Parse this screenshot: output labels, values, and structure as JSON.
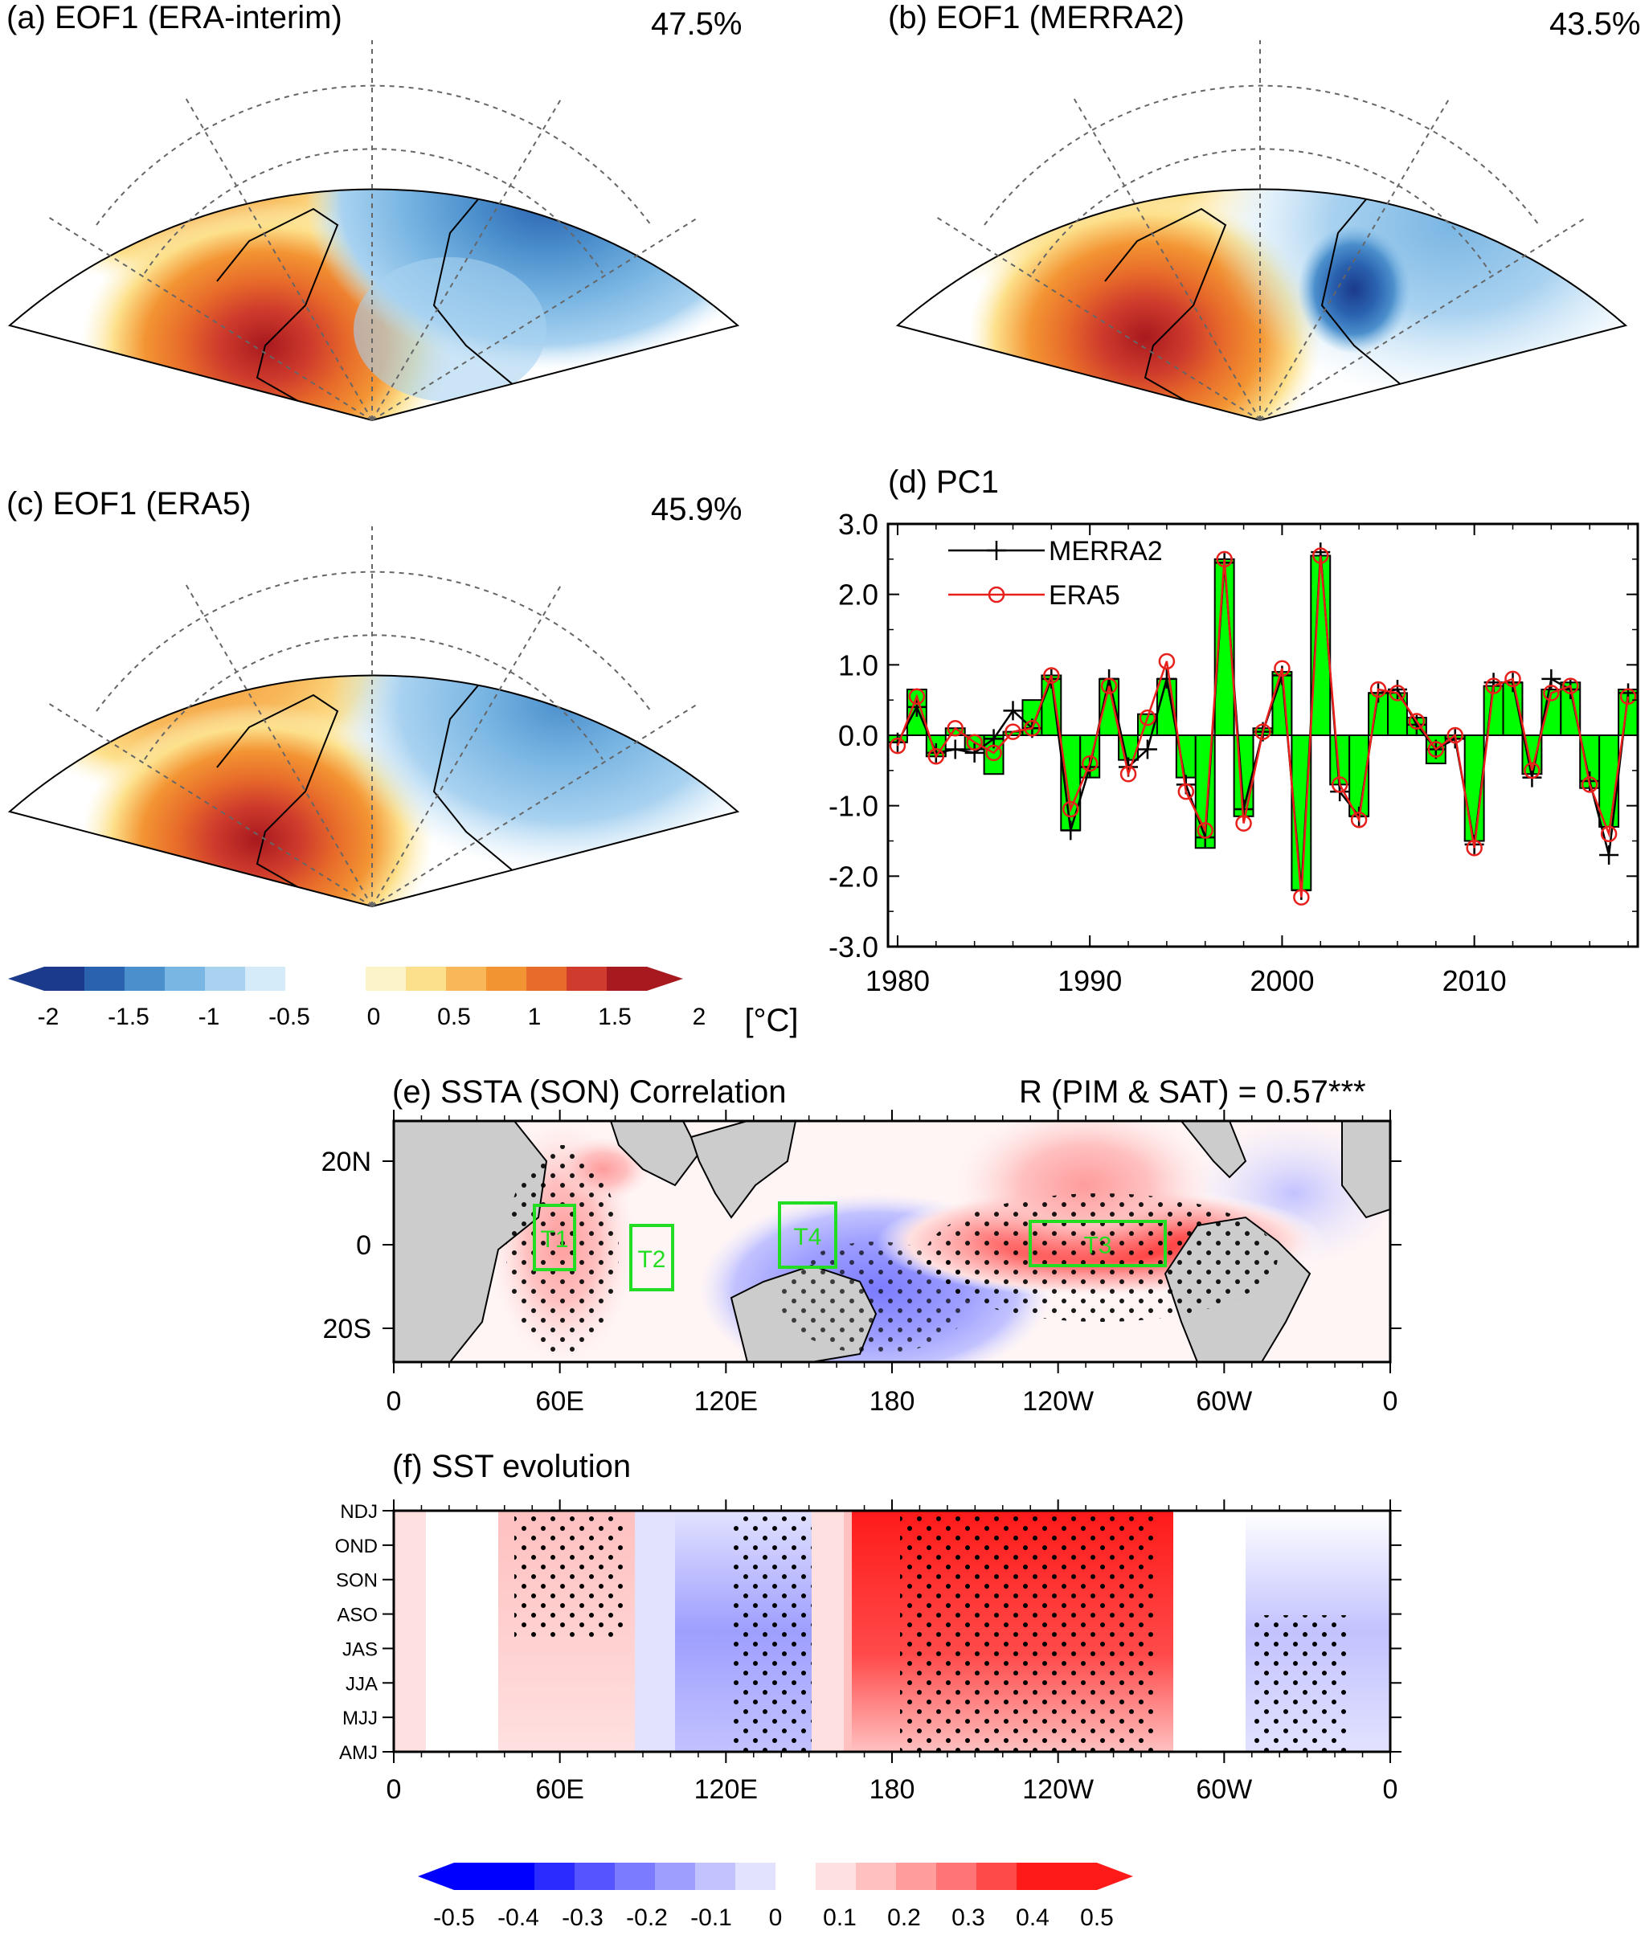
{
  "colors": {
    "eof_scale": [
      "#1b3a8c",
      "#2a62b0",
      "#4b8fcc",
      "#7ab6e3",
      "#a9d2f0",
      "#d5ebfa",
      "#ffffff",
      "#fdf3c8",
      "#fde08b",
      "#f8b85a",
      "#f39433",
      "#e76b2a",
      "#cf3b2c",
      "#a8191f"
    ],
    "sst_scale": [
      "#0000ff",
      "#2b2bff",
      "#5555ff",
      "#7b7bff",
      "#9e9eff",
      "#c2c2ff",
      "#e2e2ff",
      "#ffffff",
      "#ffe0e0",
      "#ffc0c0",
      "#ff9c9c",
      "#ff7474",
      "#ff4a4a",
      "#ff1a1a"
    ],
    "bar": "#00ff00",
    "merra2": "#000000",
    "era5": "#e8201c",
    "box": "#22dd22",
    "land": "#cccccc"
  },
  "panels": {
    "a": {
      "title": "(a) EOF1 (ERA-interim)",
      "pct": "47.5%"
    },
    "b": {
      "title": "(b) EOF1 (MERRA2)",
      "pct": "43.5%"
    },
    "c": {
      "title": "(c) EOF1 (ERA5)",
      "pct": "45.9%"
    },
    "d": {
      "title": "(d) PC1"
    },
    "e": {
      "title": "(e) SSTA (SON) Correlation",
      "corr": "R (PIM & SAT) = 0.57***",
      "boxes": [
        {
          "name": "T1"
        },
        {
          "name": "T2"
        },
        {
          "name": "T3"
        },
        {
          "name": "T4"
        }
      ]
    },
    "f": {
      "title": "(f) SST evolution"
    }
  },
  "colorbar_eof": {
    "labels": [
      "-2",
      "-1.5",
      "-1",
      "-0.5",
      "0",
      "0.5",
      "1",
      "1.5",
      "2"
    ],
    "unit": "[°C]"
  },
  "colorbar_sst": {
    "labels": [
      "-0.5",
      "-0.4",
      "-0.3",
      "-0.2",
      "-0.1",
      "0",
      "0.1",
      "0.2",
      "0.3",
      "0.4",
      "0.5"
    ]
  },
  "map_axes": {
    "lon_labels": [
      "0",
      "60E",
      "120E",
      "180",
      "120W",
      "60W",
      "0"
    ],
    "lat_labels": [
      "20N",
      "0",
      "20S"
    ],
    "season_labels": [
      "NDJ",
      "OND",
      "SON",
      "ASO",
      "JAS",
      "JJA",
      "MJJ",
      "AMJ"
    ]
  },
  "chart_data": {
    "type": "bar",
    "title": "(d) PC1",
    "xlabel": "",
    "ylabel": "",
    "xlim": [
      1980,
      2018
    ],
    "ylim": [
      -3.0,
      3.0
    ],
    "x_ticks": [
      "1980",
      "1990",
      "2000",
      "2010"
    ],
    "y_ticks": [
      "3.0",
      "2.0",
      "1.0",
      "0.0",
      "-1.0",
      "-2.0",
      "-3.0"
    ],
    "legend_position": "top-left",
    "years": [
      1980,
      1981,
      1982,
      1983,
      1984,
      1985,
      1986,
      1987,
      1988,
      1989,
      1990,
      1991,
      1992,
      1993,
      1994,
      1995,
      1996,
      1997,
      1998,
      1999,
      2000,
      2001,
      2002,
      2003,
      2004,
      2005,
      2006,
      2007,
      2008,
      2009,
      2010,
      2011,
      2012,
      2013,
      2014,
      2015,
      2016,
      2017,
      2018
    ],
    "bars": [
      -0.1,
      0.65,
      -0.3,
      0.1,
      -0.2,
      -0.55,
      0.05,
      0.5,
      0.85,
      -1.35,
      -0.6,
      0.8,
      -0.35,
      0.3,
      0.8,
      -0.6,
      -1.6,
      2.5,
      -1.15,
      0.1,
      0.9,
      -2.2,
      2.55,
      -0.7,
      -1.15,
      0.6,
      0.6,
      0.25,
      -0.4,
      -0.05,
      -1.5,
      0.7,
      0.75,
      -0.55,
      0.65,
      0.75,
      -0.75,
      -1.3,
      0.65
    ],
    "series": [
      {
        "name": "MERRA2",
        "values": [
          -0.1,
          0.4,
          -0.25,
          -0.2,
          -0.25,
          -0.05,
          0.35,
          0.1,
          0.8,
          -1.35,
          -0.45,
          0.8,
          -0.45,
          -0.2,
          0.8,
          -0.7,
          -1.45,
          2.45,
          -1.05,
          0.05,
          0.85,
          -2.2,
          2.6,
          -0.8,
          -1.15,
          0.6,
          0.65,
          0.15,
          -0.2,
          -0.05,
          -1.55,
          0.75,
          0.75,
          -0.6,
          0.8,
          0.65,
          -0.65,
          -1.7,
          0.6
        ]
      },
      {
        "name": "ERA5",
        "values": [
          -0.15,
          0.55,
          -0.3,
          0.1,
          -0.1,
          -0.25,
          0.05,
          0.1,
          0.85,
          -1.05,
          -0.4,
          0.7,
          -0.55,
          0.25,
          1.05,
          -0.8,
          -1.35,
          2.5,
          -1.25,
          0.05,
          0.95,
          -2.3,
          2.55,
          -0.7,
          -1.2,
          0.65,
          0.6,
          0.2,
          -0.2,
          0.0,
          -1.6,
          0.7,
          0.8,
          -0.5,
          0.6,
          0.7,
          -0.7,
          -1.4,
          0.55
        ]
      }
    ]
  }
}
